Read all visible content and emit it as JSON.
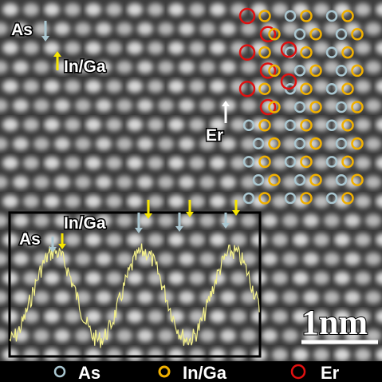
{
  "image": {
    "labels": {
      "as_top": "As",
      "in_ga_top": "In/Ga",
      "er": "Er",
      "as_inset": "As",
      "in_ga_inset": "In/Ga"
    },
    "scale_bar": "1nm"
  },
  "legend": [
    "As",
    "In/Ga",
    "Er"
  ]
}
